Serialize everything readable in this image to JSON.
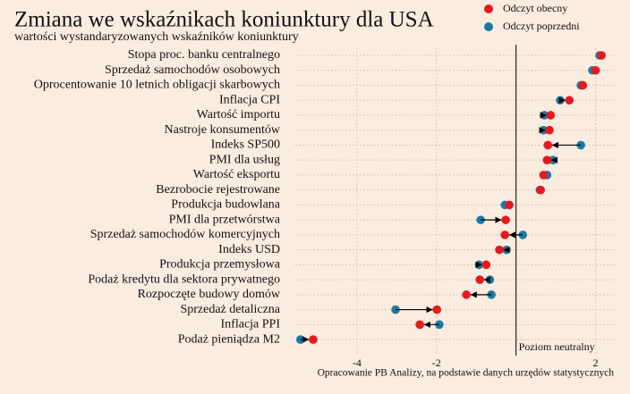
{
  "chart_data": {
    "type": "dumbbell",
    "title": "Zmiana we wskaźnikach koniunktury dla USA",
    "subtitle": "wartości wystandaryzowanych wskaźników koniunktury",
    "annotation": "Poziom neutralny",
    "source": "Opracowanie PB Analizy, na podstawie danych urzędów statystycznych",
    "categories": [
      "Stopa proc. banku centralnego",
      "Sprzedaż samochodów osobowych",
      "Oprocentowanie 10 letnich obligacji skarbowych",
      "Inflacja CPI",
      "Wartość importu",
      "Nastroje konsumentów",
      "Indeks SP500",
      "PMI dla usług",
      "Wartość eksportu",
      "Bezrobocie rejestrowane",
      "Produkcja budowlana",
      "PMI dla przetwórstwa",
      "Sprzedaż samochodów komercyjnych",
      "Indeks USD",
      "Produkcja przemysłowa",
      "Podaż kredytu dla sektora prywatnego",
      "Rozpoczęte budowy domów",
      "Sprzedaż detaliczna",
      "Inflacja PPI",
      "Podaż pieniądza M2"
    ],
    "series": [
      {
        "name": "Odczyt obecny",
        "color": "#e8191e",
        "values": [
          2.15,
          2.0,
          1.68,
          1.34,
          0.87,
          0.84,
          0.8,
          0.78,
          0.69,
          0.62,
          -0.17,
          -0.26,
          -0.28,
          -0.42,
          -0.75,
          -0.91,
          -1.25,
          -1.99,
          -2.42,
          -5.1
        ]
      },
      {
        "name": "Odczyt poprzedni",
        "color": "#1a7aa6",
        "values": [
          2.1,
          1.92,
          1.63,
          1.11,
          0.71,
          0.69,
          1.63,
          0.93,
          0.78,
          0.6,
          -0.28,
          -0.89,
          0.17,
          -0.24,
          -0.93,
          -0.66,
          -0.62,
          -3.03,
          -1.93,
          -5.42
        ]
      }
    ],
    "xlim": [
      -5.55,
      2.55
    ],
    "xticks": [
      -4,
      -2,
      2
    ],
    "grid": true
  }
}
